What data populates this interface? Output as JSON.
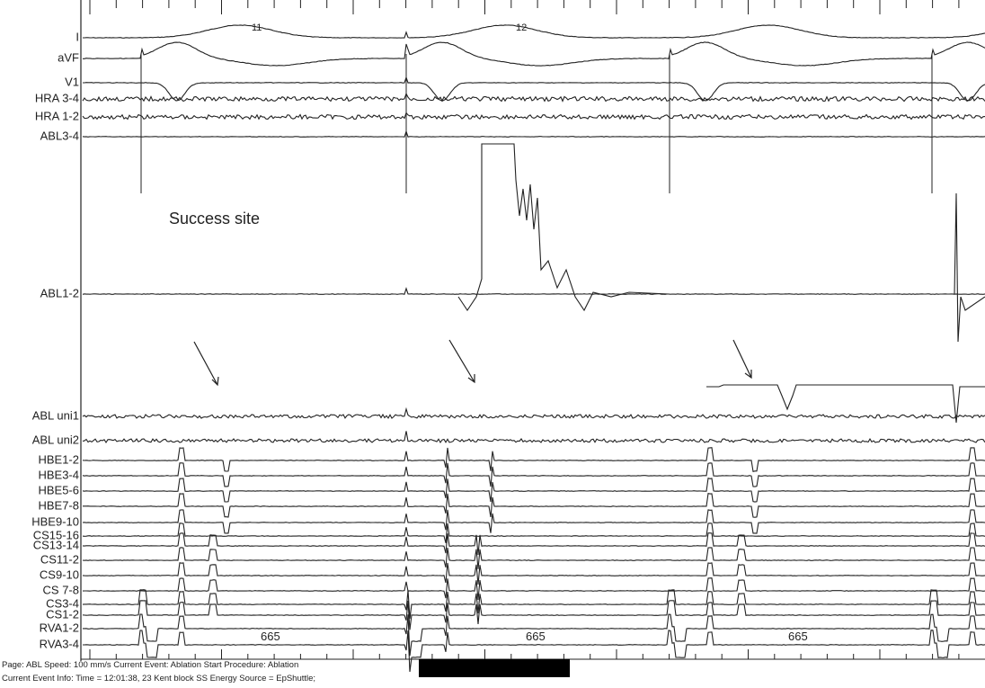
{
  "channels": [
    "I",
    "aVF",
    "V1",
    "HRA 3-4",
    "HRA 1-2",
    "ABL3-4",
    "ABL1-2",
    "ABL uni1",
    "ABL uni2",
    "HBE1-2",
    "HBE3-4",
    "HBE5-6",
    "HBE7-8",
    "HBE9-10",
    "CS15-16",
    "CS13-14",
    "CS11-2",
    "CS9-10",
    "CS 7-8",
    "CS3-4",
    "CS1-2",
    "RVA1-2",
    "RVA3-4"
  ],
  "annotations": {
    "beat_labels": [
      "11",
      "12"
    ],
    "site_label": "Success site",
    "intervals": [
      "665",
      "665",
      "665"
    ]
  },
  "footer": {
    "line1": "Page: ABL   Speed: 100 mm/s      Current Event: Ablation Start       Procedure: Ablation",
    "line2": "Current Event Info: Time = 12:01:38,  23 Kent block SS   Energy Source = EpShuttle;"
  }
}
